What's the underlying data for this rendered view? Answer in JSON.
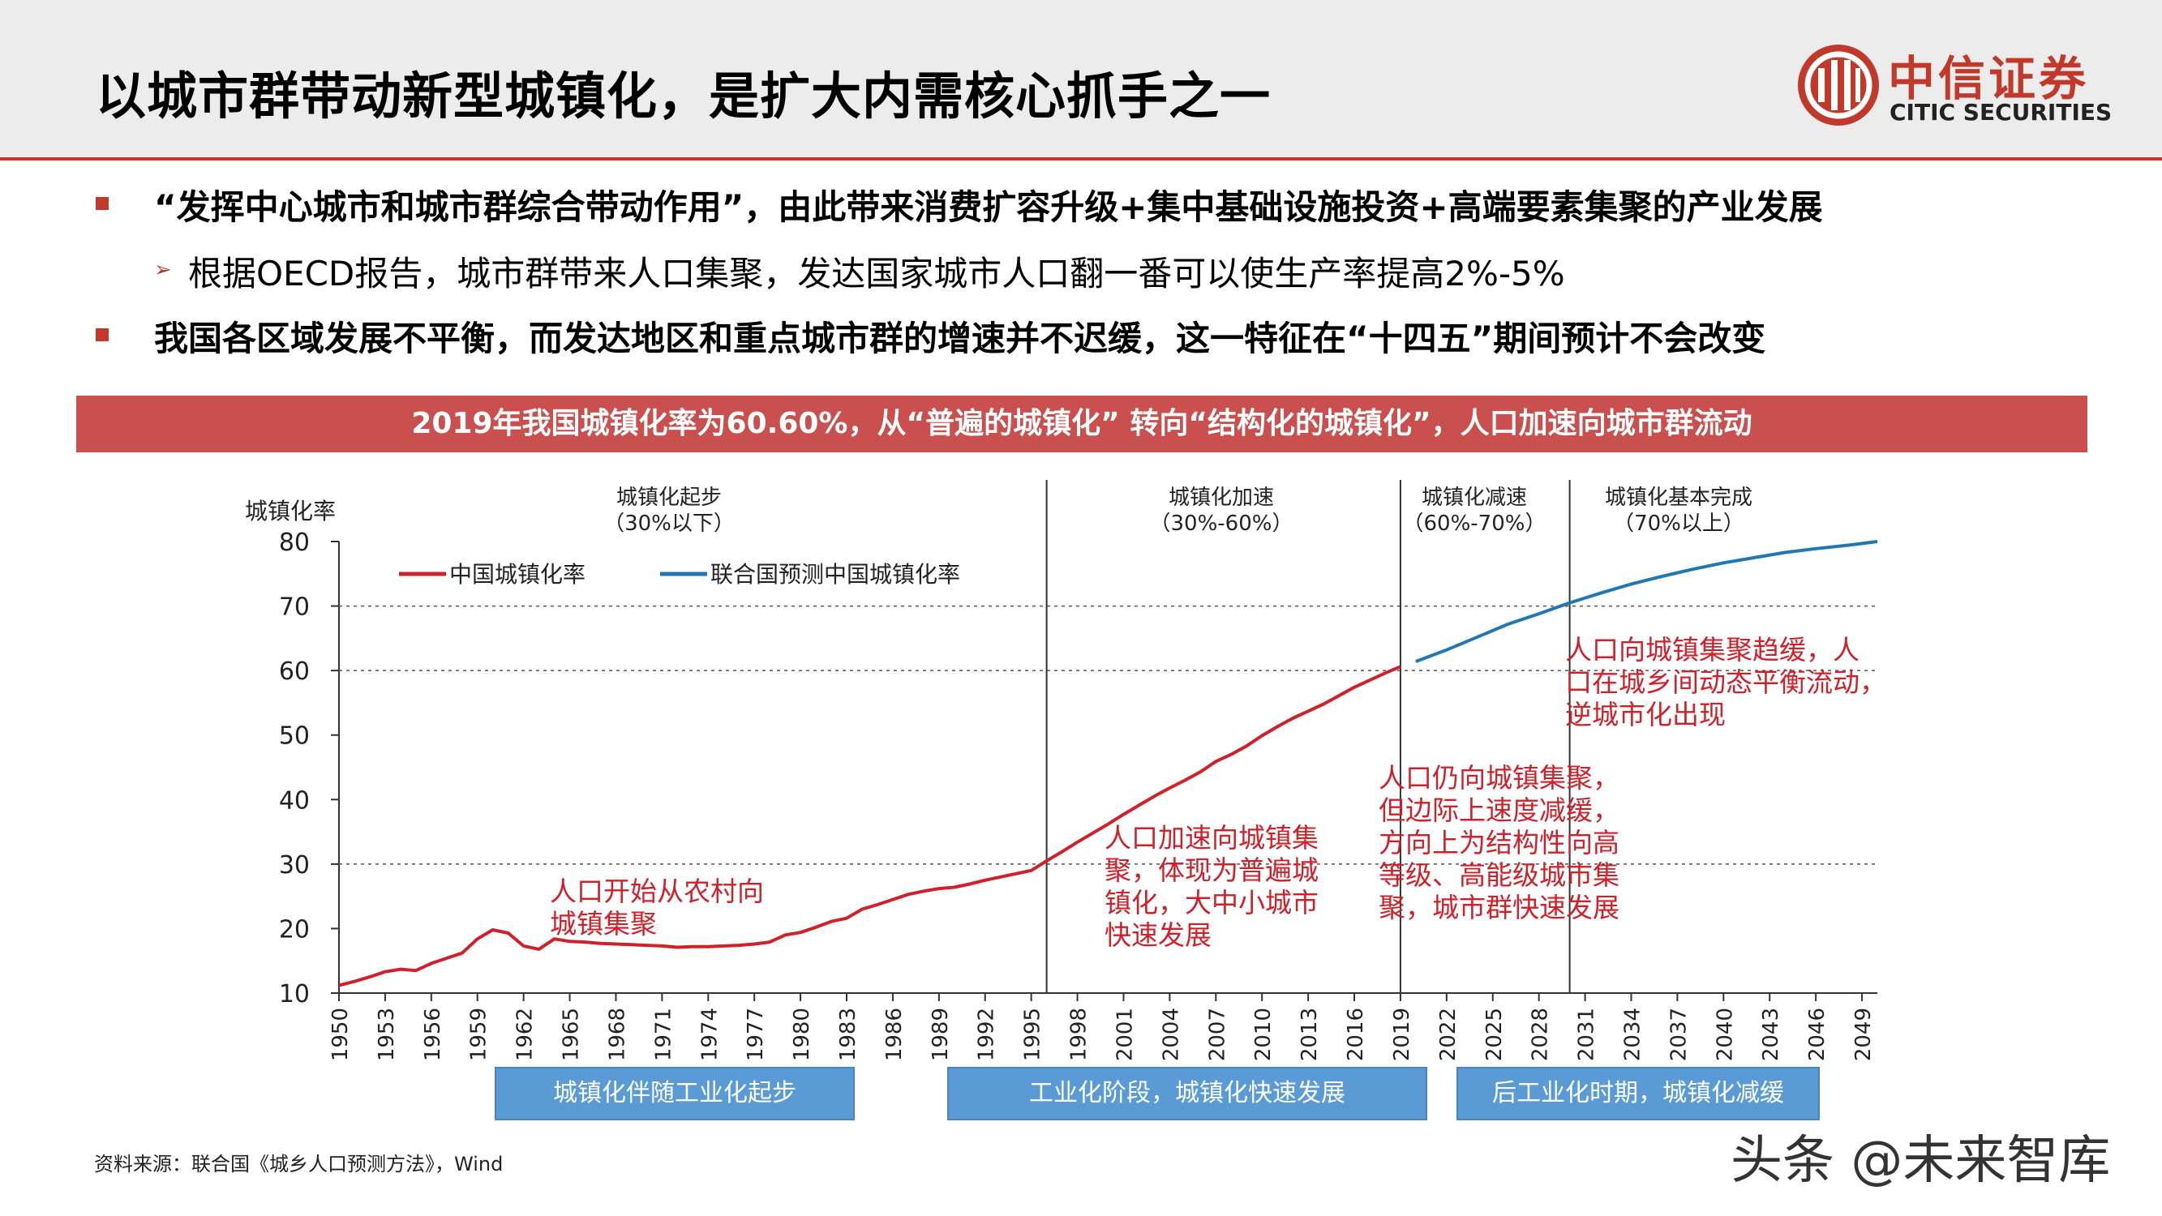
{
  "header": {
    "title": "以城市群带动新型城镇化，是扩大内需核心抓手之一",
    "logo_cn": "中信证券",
    "logo_en": "CITIC SECURITIES"
  },
  "bullets": [
    {
      "text": "“发挥中心城市和城市群综合带动作用”，由此带来消费扩容升级+集中基础设施投资+高端要素集聚的产业发展"
    },
    {
      "text": "根据OECD报告，城市群带来人口集聚，发达国家城市人口翻一番可以使生产率提高2%-5%"
    },
    {
      "text": "我国各区域发展不平衡，而发达地区和重点城市群的增速并不迟缓，这一特征在“十四五”期间预计不会改变"
    }
  ],
  "banner": "2019年我国城镇化率为60.60%，从“普遍的城镇化” 转向“结构化的城镇化”，人口加速向城市群流动",
  "colors": {
    "accent": "#c0392b",
    "china_line": "#d0202a",
    "un_line": "#1f77b4",
    "stage_box": "#5a9bd5"
  },
  "chart_data": {
    "type": "line",
    "ylabel": "城镇化率",
    "ylim": [
      10,
      80
    ],
    "yticks": [
      10,
      20,
      30,
      40,
      50,
      60,
      70,
      80
    ],
    "xlim": [
      1950,
      2050
    ],
    "xticks": [
      1950,
      1953,
      1956,
      1959,
      1962,
      1965,
      1968,
      1971,
      1974,
      1977,
      1980,
      1983,
      1986,
      1989,
      1992,
      1995,
      1998,
      2001,
      2004,
      2007,
      2010,
      2013,
      2016,
      2019,
      2022,
      2025,
      2028,
      2031,
      2034,
      2037,
      2040,
      2043,
      2046,
      2049
    ],
    "legend_position": "top-left",
    "reference_lines_y": [
      30,
      60,
      70
    ],
    "phase_dividers_x": [
      1996,
      2019,
      2030
    ],
    "series": [
      {
        "name": "中国城镇化率",
        "color": "#d0202a",
        "x": [
          1950,
          1951,
          1952,
          1953,
          1954,
          1955,
          1956,
          1957,
          1958,
          1959,
          1960,
          1961,
          1962,
          1963,
          1964,
          1965,
          1966,
          1967,
          1968,
          1969,
          1970,
          1971,
          1972,
          1973,
          1974,
          1975,
          1976,
          1977,
          1978,
          1979,
          1980,
          1981,
          1982,
          1983,
          1984,
          1985,
          1986,
          1987,
          1988,
          1989,
          1990,
          1991,
          1992,
          1993,
          1994,
          1995,
          1996,
          1997,
          1998,
          1999,
          2000,
          2001,
          2002,
          2003,
          2004,
          2005,
          2006,
          2007,
          2008,
          2009,
          2010,
          2011,
          2012,
          2013,
          2014,
          2015,
          2016,
          2017,
          2018,
          2019
        ],
        "values": [
          11.2,
          11.8,
          12.5,
          13.3,
          13.7,
          13.5,
          14.6,
          15.4,
          16.2,
          18.4,
          19.8,
          19.3,
          17.3,
          16.8,
          18.4,
          18.0,
          17.9,
          17.7,
          17.6,
          17.5,
          17.4,
          17.3,
          17.1,
          17.2,
          17.2,
          17.3,
          17.4,
          17.6,
          17.9,
          19.0,
          19.4,
          20.2,
          21.1,
          21.6,
          23.0,
          23.7,
          24.5,
          25.3,
          25.8,
          26.2,
          26.4,
          26.9,
          27.5,
          28.0,
          28.5,
          29.0,
          30.5,
          31.9,
          33.4,
          34.8,
          36.2,
          37.7,
          39.1,
          40.5,
          41.8,
          43.0,
          44.3,
          45.9,
          47.0,
          48.3,
          49.9,
          51.3,
          52.6,
          53.7,
          54.8,
          56.1,
          57.4,
          58.5,
          59.6,
          60.6
        ]
      },
      {
        "name": "联合国预测中国城镇化率",
        "color": "#1f77b4",
        "x": [
          2020,
          2022,
          2024,
          2026,
          2028,
          2030,
          2032,
          2034,
          2036,
          2038,
          2040,
          2042,
          2044,
          2046,
          2048,
          2050
        ],
        "values": [
          61.4,
          63.2,
          65.2,
          67.2,
          68.8,
          70.5,
          72.0,
          73.4,
          74.6,
          75.7,
          76.7,
          77.5,
          78.3,
          78.9,
          79.4,
          80.0
        ]
      }
    ],
    "phase_labels": [
      {
        "title": "城镇化起步",
        "range": "（30%以下）"
      },
      {
        "title": "城镇化加速",
        "range": "（30%-60%）"
      },
      {
        "title": "城镇化减速",
        "range": "（60%-70%）"
      },
      {
        "title": "城镇化基本完成",
        "range": "（70%以上）"
      }
    ],
    "annotations": [
      {
        "lines": [
          "人口开始从农村向",
          "城镇集聚"
        ]
      },
      {
        "lines": [
          "人口加速向城镇集",
          "聚，体现为普遍城",
          "镇化，大中小城市",
          "快速发展"
        ]
      },
      {
        "lines": [
          "人口仍向城镇集聚，",
          "但边际上速度减缓，",
          "方向上为结构性向高",
          "等级、高能级城市集",
          "聚，城市群快速发展"
        ]
      },
      {
        "lines": [
          "人口向城镇集聚趋缓，人",
          "口在城乡间动态平衡流动，",
          "逆城市化出现"
        ]
      }
    ],
    "stage_boxes": [
      "城镇化伴随工业化起步",
      "工业化阶段，城镇化快速发展",
      "后工业化时期，城镇化减缓"
    ]
  },
  "source": "资料来源：联合国《城乡人口预测方法》，Wind",
  "watermark": "头条 @未来智库"
}
